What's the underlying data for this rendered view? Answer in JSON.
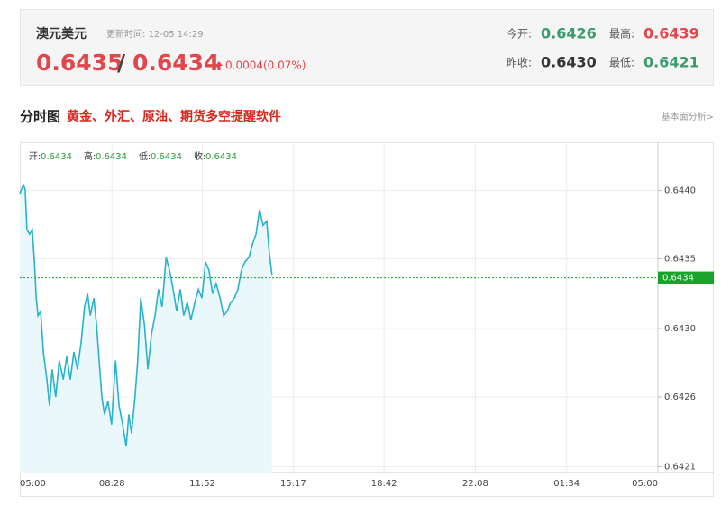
{
  "header": {
    "title": "澳元美元",
    "update_time": "更新时间: 12-05 14:29",
    "bid": "0.6435",
    "separator": "/",
    "ask": "0.6434",
    "change": "0.0004(0.07%)",
    "stats": [
      {
        "label": "今开:",
        "value": "0.6426",
        "color": "#3a9a6a"
      },
      {
        "label": "最高:",
        "value": "0.6439",
        "color": "#e0474c"
      },
      {
        "label": "昨收:",
        "value": "0.6430",
        "color": "#333333"
      },
      {
        "label": "最低:",
        "value": "0.6421",
        "color": "#3a9a6a"
      }
    ]
  },
  "section": {
    "title": "分时图",
    "promo": "黄金、外汇、原油、期货多空提醒软件",
    "link": "基本面分析>"
  },
  "chart_data": {
    "type": "line",
    "ohlc": [
      {
        "label": "开:",
        "value": "0.6434"
      },
      {
        "label": "高:",
        "value": "0.6434"
      },
      {
        "label": "低:",
        "value": "0.6434"
      },
      {
        "label": "收:",
        "value": "0.6434"
      }
    ],
    "x": [
      0,
      8,
      12,
      16,
      22,
      28,
      33,
      37,
      41,
      47,
      53,
      61,
      67,
      73,
      81,
      89,
      98,
      106,
      114,
      122,
      130,
      138,
      146,
      153,
      159,
      167,
      173,
      179,
      185,
      191,
      199,
      207,
      216,
      224,
      232,
      240,
      246,
      252,
      260,
      266,
      273,
      281,
      289,
      297,
      305,
      313,
      321,
      330,
      338,
      346,
      354,
      362,
      370,
      378,
      386,
      395,
      403,
      411,
      419,
      427,
      435,
      443,
      452,
      460,
      468,
      476,
      484,
      492,
      500,
      508,
      517,
      525,
      533,
      541,
      549,
      557,
      563,
      569
    ],
    "values": [
      0.64398,
      0.64404,
      0.64401,
      0.64373,
      0.6437,
      0.64373,
      0.64351,
      0.64326,
      0.64314,
      0.64317,
      0.64289,
      0.6427,
      0.64252,
      0.64277,
      0.64258,
      0.64283,
      0.6427,
      0.64286,
      0.6427,
      0.64289,
      0.64277,
      0.64295,
      0.6432,
      0.64329,
      0.64314,
      0.64326,
      0.64308,
      0.64283,
      0.64258,
      0.64246,
      0.64255,
      0.64239,
      0.64283,
      0.64252,
      0.64239,
      0.64224,
      0.64246,
      0.64233,
      0.64258,
      0.64283,
      0.64326,
      0.64308,
      0.64277,
      0.64301,
      0.64314,
      0.64332,
      0.6432,
      0.64354,
      0.64345,
      0.64332,
      0.64317,
      0.64332,
      0.64314,
      0.64323,
      0.64311,
      0.64323,
      0.64332,
      0.64326,
      0.64351,
      0.64345,
      0.64329,
      0.64336,
      0.64326,
      0.64314,
      0.64317,
      0.64323,
      0.64326,
      0.64332,
      0.64345,
      0.64351,
      0.64354,
      0.64363,
      0.6437,
      0.64387,
      0.64376,
      0.64379,
      0.64357,
      0.64342
    ],
    "color": "#27b3cc",
    "area_color": "#eaf8fb",
    "xlim": [
      0,
      1440
    ],
    "xticks": [
      {
        "value": 0,
        "label": "05:00"
      },
      {
        "value": 208,
        "label": "08:28"
      },
      {
        "value": 412,
        "label": "11:52"
      },
      {
        "value": 617,
        "label": "15:17"
      },
      {
        "value": 822,
        "label": "18:42"
      },
      {
        "value": 1028,
        "label": "22:08"
      },
      {
        "value": 1234,
        "label": "01:34"
      },
      {
        "value": 1440,
        "label": "05:00"
      }
    ],
    "ylim": [
      0.64206,
      0.64432
    ],
    "yticks": [
      {
        "value": 0.6421,
        "label": "0.6421"
      },
      {
        "value": 0.64258,
        "label": "0.6426"
      },
      {
        "value": 0.64305,
        "label": "0.6430"
      },
      {
        "value": 0.64353,
        "label": "0.6435"
      },
      {
        "value": 0.644,
        "label": "0.6440"
      }
    ],
    "grid": true,
    "current_price": 0.6434,
    "current_price_color": "#18a32a"
  }
}
